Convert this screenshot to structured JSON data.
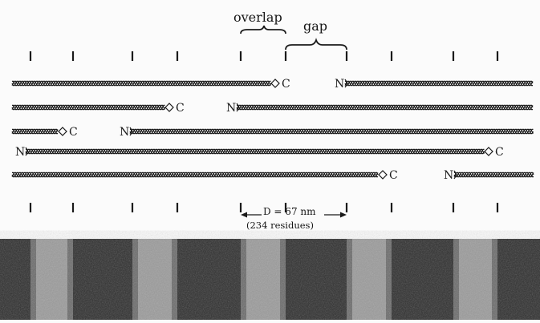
{
  "labels": {
    "overlap": "overlap",
    "gap": "gap",
    "d_period": "D = 67 nm",
    "residues": "(234 residues)"
  },
  "terminus": {
    "n": "N",
    "c": "C"
  },
  "colors": {
    "ink": "#1a1a1a",
    "background": "#fbfbfb",
    "band_dark": "#2b2b2b",
    "band_light": "#9a9a9a"
  }
}
